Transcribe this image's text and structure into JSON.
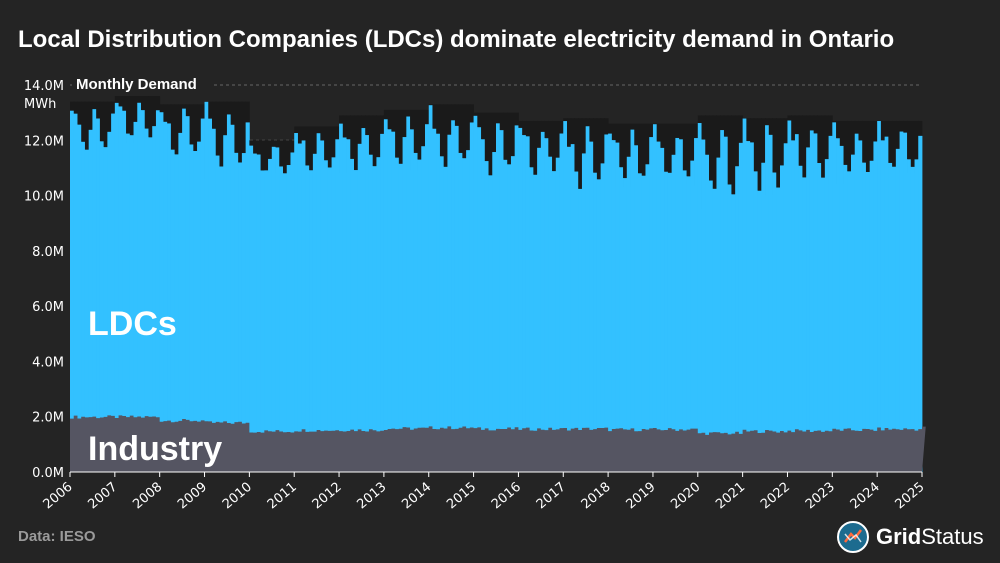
{
  "title": "Local Distribution Companies (LDCs) dominate electricity demand in Ontario",
  "source": "Data: IESO",
  "brand": {
    "part1": "Grid",
    "part2": "Status",
    "logo_icon": "gridstatus-logo-icon"
  },
  "colors": {
    "background": "#242424",
    "ldc": "#33c1ff",
    "industry": "#555562",
    "monthly_gap": "#1a1a1a",
    "grid": "#666666"
  },
  "chart_data": {
    "type": "area",
    "stacked": true,
    "title": "Local Distribution Companies (LDCs) dominate electricity demand in Ontario",
    "series_label": "Monthly Demand",
    "y_unit": "MWh",
    "ylim": [
      0,
      14000000
    ],
    "yticks": [
      {
        "value": 0,
        "label": "0.0M"
      },
      {
        "value": 2000000,
        "label": "2.0M"
      },
      {
        "value": 4000000,
        "label": "4.0M"
      },
      {
        "value": 6000000,
        "label": "6.0M"
      },
      {
        "value": 8000000,
        "label": "8.0M"
      },
      {
        "value": 10000000,
        "label": "10.0M"
      },
      {
        "value": 12000000,
        "label": "12.0M"
      },
      {
        "value": 14000000,
        "label": "14.0M"
      }
    ],
    "xticks": [
      "2006",
      "2007",
      "2008",
      "2009",
      "2010",
      "2011",
      "2012",
      "2013",
      "2014",
      "2015",
      "2016",
      "2017",
      "2018",
      "2019",
      "2020",
      "2021",
      "2022",
      "2023",
      "2024",
      "2025"
    ],
    "x_start": "2006-01",
    "x_end": "2025-01",
    "grid": "horizontal dashed",
    "series": [
      {
        "name": "Industry",
        "annual_avg_monthly_mwh": [
          1.99,
          1.99,
          1.86,
          1.78,
          1.47,
          1.51,
          1.52,
          1.57,
          1.6,
          1.56,
          1.55,
          1.56,
          1.53,
          1.54,
          1.4,
          1.47,
          1.49,
          1.52,
          1.55,
          1.6
        ],
        "unit": "M MWh"
      },
      {
        "name": "LDCs",
        "annual_total_peak_mwh": [
          13.4,
          13.6,
          13.3,
          13.4,
          12.0,
          12.5,
          12.9,
          13.1,
          13.3,
          13.0,
          12.7,
          12.8,
          12.6,
          12.6,
          12.9,
          12.8,
          12.9,
          12.7,
          12.7,
          12.5
        ],
        "annual_total_trough_mwh": [
          11.2,
          11.6,
          11.1,
          10.3,
          10.5,
          10.6,
          10.5,
          10.6,
          10.5,
          10.3,
          10.4,
          9.7,
          10.0,
          10.1,
          9.2,
          9.7,
          10.1,
          10.1,
          10.5,
          10.8
        ],
        "unit": "M MWh (total monthly demand)"
      }
    ],
    "annotations": [
      {
        "text": "LDCs",
        "series": "LDCs"
      },
      {
        "text": "Industry",
        "series": "Industry"
      }
    ]
  }
}
